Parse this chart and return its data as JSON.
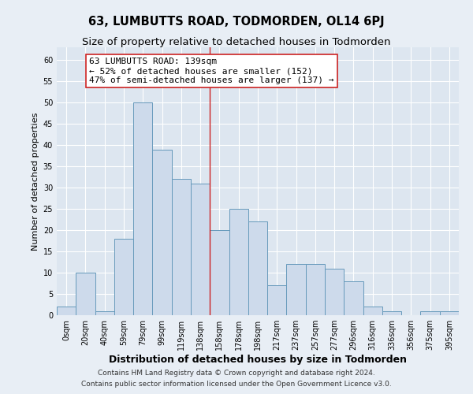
{
  "title": "63, LUMBUTTS ROAD, TODMORDEN, OL14 6PJ",
  "subtitle": "Size of property relative to detached houses in Todmorden",
  "xlabel": "Distribution of detached houses by size in Todmorden",
  "ylabel": "Number of detached properties",
  "bar_labels": [
    "0sqm",
    "20sqm",
    "40sqm",
    "59sqm",
    "79sqm",
    "99sqm",
    "119sqm",
    "138sqm",
    "158sqm",
    "178sqm",
    "198sqm",
    "217sqm",
    "237sqm",
    "257sqm",
    "277sqm",
    "296sqm",
    "316sqm",
    "336sqm",
    "356sqm",
    "375sqm",
    "395sqm"
  ],
  "bar_heights": [
    2,
    10,
    1,
    18,
    50,
    39,
    32,
    31,
    20,
    25,
    22,
    7,
    12,
    12,
    11,
    8,
    2,
    1,
    0,
    1,
    1
  ],
  "bar_color": "#cddaeb",
  "bar_edge_color": "#6699bb",
  "highlight_line_color": "#cc2222",
  "annotation_text_line1": "63 LUMBUTTS ROAD: 139sqm",
  "annotation_text_line2": "← 52% of detached houses are smaller (152)",
  "annotation_text_line3": "47% of semi-detached houses are larger (137) →",
  "ylim": [
    0,
    63
  ],
  "yticks": [
    0,
    5,
    10,
    15,
    20,
    25,
    30,
    35,
    40,
    45,
    50,
    55,
    60
  ],
  "footer_line1": "Contains HM Land Registry data © Crown copyright and database right 2024.",
  "footer_line2": "Contains public sector information licensed under the Open Government Licence v3.0.",
  "bg_color": "#e8eef5",
  "plot_bg_color": "#dde6f0",
  "grid_color": "#ffffff",
  "title_fontsize": 10.5,
  "subtitle_fontsize": 9.5,
  "xlabel_fontsize": 9,
  "ylabel_fontsize": 8,
  "tick_fontsize": 7,
  "annotation_fontsize": 8,
  "footer_fontsize": 6.5
}
